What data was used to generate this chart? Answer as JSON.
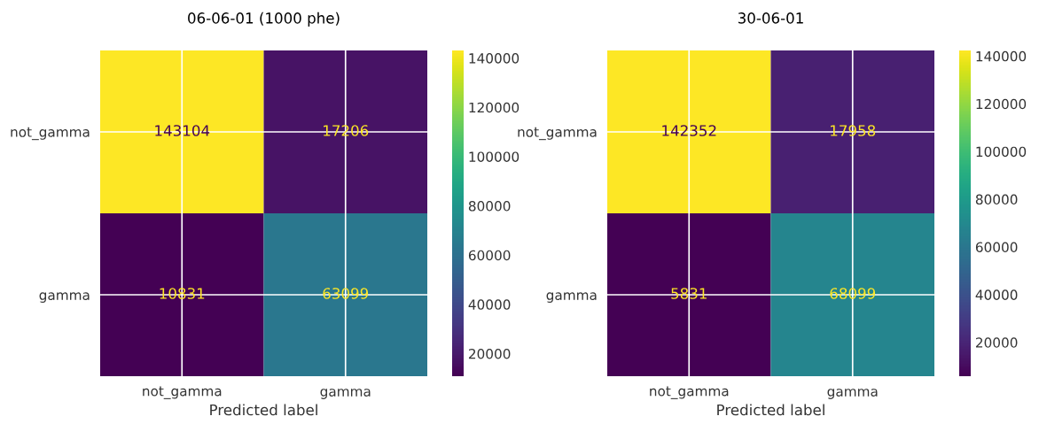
{
  "chart_data": [
    {
      "type": "heatmap",
      "title": "06-06-01 (1000 phe)",
      "xlabel": "Predicted label",
      "categories": [
        "not_gamma",
        "gamma"
      ],
      "y_categories": [
        "not_gamma",
        "gamma"
      ],
      "cells": [
        [
          143104,
          17206
        ],
        [
          10831,
          63099
        ]
      ],
      "data_labels": true,
      "clim": [
        10831,
        143104
      ],
      "cticks": [
        20000,
        40000,
        60000,
        80000,
        100000,
        120000,
        140000
      ],
      "grid": true
    },
    {
      "type": "heatmap",
      "title": "30-06-01",
      "xlabel": "Predicted label",
      "categories": [
        "not_gamma",
        "gamma"
      ],
      "y_categories": [
        "not_gamma",
        "gamma"
      ],
      "cells": [
        [
          142352,
          17958
        ],
        [
          5831,
          68099
        ]
      ],
      "data_labels": true,
      "clim": [
        5831,
        142352
      ],
      "cticks": [
        20000,
        40000,
        60000,
        80000,
        100000,
        120000,
        140000
      ],
      "grid": true
    }
  ]
}
